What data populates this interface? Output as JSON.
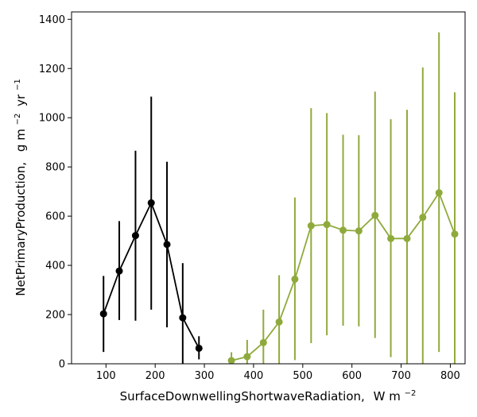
{
  "chart_data": {
    "type": "line",
    "xlabel": "SurfaceDownwellingShortwaveRadiation,",
    "xlabel_unit": "W m",
    "xlabel_unit_exp": "−2",
    "ylabel": "NetPrimaryProduction,",
    "ylabel_unit_g": "g m",
    "ylabel_unit_exp1": "−2",
    "ylabel_unit_yr": "yr",
    "ylabel_unit_exp2": "−1",
    "xlim": [
      30,
      830
    ],
    "ylim": [
      0,
      1430
    ],
    "x_ticks": [
      100,
      200,
      300,
      400,
      500,
      600,
      700,
      800
    ],
    "x_tick_labels": [
      "100",
      "200",
      "300",
      "400",
      "500",
      "600",
      "700",
      "800"
    ],
    "y_ticks": [
      0,
      200,
      400,
      600,
      800,
      1000,
      1200,
      1400
    ],
    "y_tick_labels": [
      "0",
      "200",
      "400",
      "600",
      "800",
      "1000",
      "1200",
      "1400"
    ],
    "grid": false,
    "legend": "none",
    "series": [
      {
        "color": "#000000",
        "x": [
          95,
          127,
          160,
          192,
          224,
          256,
          289
        ],
        "y": [
          203,
          377,
          521,
          654,
          485,
          187,
          63
        ],
        "err_low": [
          48,
          178,
          175,
          220,
          148,
          0,
          18
        ],
        "err_high": [
          357,
          580,
          866,
          1086,
          821,
          409,
          112
        ]
      },
      {
        "color": "#8faa3c",
        "x": [
          355,
          387,
          420,
          452,
          484,
          517,
          549,
          582,
          614,
          647,
          679,
          712,
          744,
          777,
          809
        ],
        "y": [
          13,
          29,
          86,
          170,
          344,
          561,
          566,
          543,
          540,
          603,
          509,
          509,
          595,
          695,
          527
        ],
        "err_low": [
          0,
          0,
          0,
          0,
          15,
          84,
          116,
          155,
          152,
          105,
          27,
          0,
          0,
          48,
          0
        ],
        "err_high": [
          47,
          97,
          220,
          360,
          676,
          1039,
          1019,
          931,
          929,
          1106,
          994,
          1032,
          1204,
          1347,
          1103
        ]
      }
    ]
  }
}
